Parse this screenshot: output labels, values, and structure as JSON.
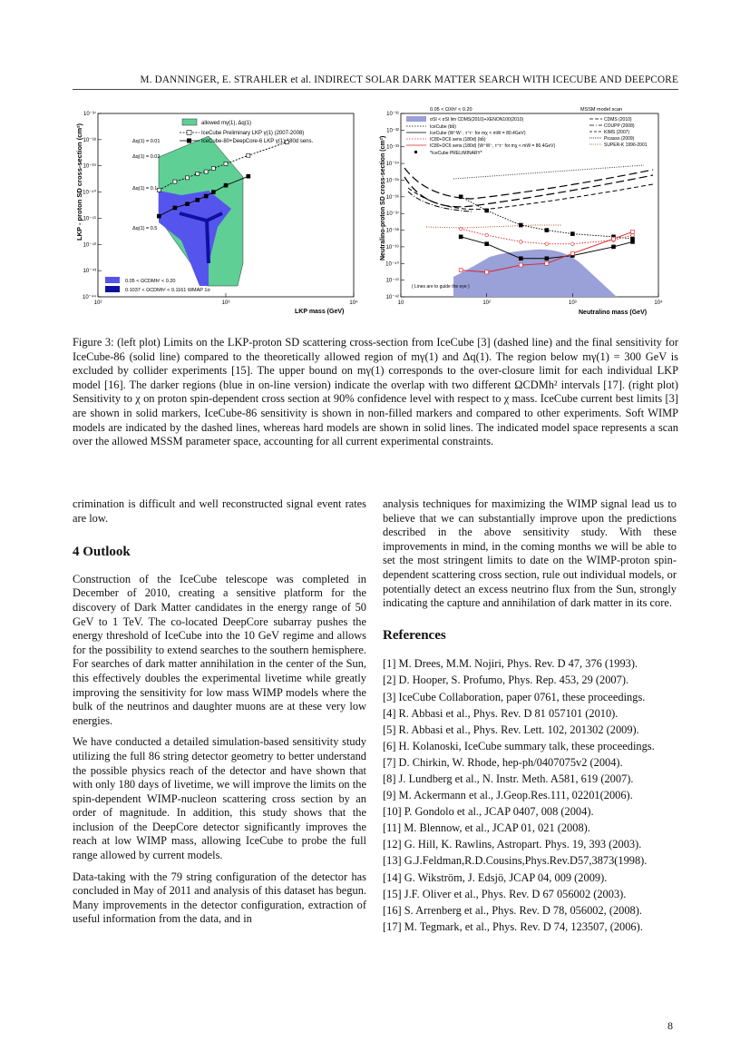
{
  "header": {
    "text": "M. DANNINGER, E. STRAHLER et al. INDIRECT SOLAR DARK MATTER SEARCH WITH ICECUBE AND DEEPCORE"
  },
  "figure": {
    "left": {
      "ylabel": "LKP - proton SD cross-section (cm²)",
      "xlabel": "LKP mass (GeV)",
      "y_ticks": [
        "10⁻³⁷",
        "10⁻³⁸",
        "10⁻³⁹",
        "10⁻⁴⁰",
        "10⁻⁴¹",
        "10⁻⁴²",
        "10⁻⁴³",
        "10⁻⁴⁴"
      ],
      "x_ticks": [
        "10²",
        "10³",
        "10⁴"
      ],
      "legend": [
        "allowed mγ(1), Δq(1)",
        "IceCube Preliminary LKP γ(1) (2007-2008)",
        "IceCube-80+DeepCore-6 LKP γ(1) 180d sens."
      ],
      "legend2": [
        "0.05 < ΩCDMh² < 0.20",
        "0.1037 < ΩCDMh² < 0.1161 WMAP 1σ"
      ],
      "annotations": [
        "Δq(1) = 0.01",
        "Δq(1) = 0.02",
        "Δq(1) = 0.1",
        "Δq(1) = 0.5"
      ],
      "chart_data": {
        "type": "line",
        "xlabel": "LKP mass (GeV)",
        "ylabel": "LKP - proton SD cross-section (cm²)",
        "xlim": [
          100,
          10000
        ],
        "ylim": [
          1e-44,
          1e-37
        ],
        "log_x": true,
        "log_y": true,
        "series": [
          {
            "name": "IceCube Preliminary LKP γ(1) (2007-2008)",
            "x": [
              300,
              400,
              500,
              600,
              700,
              800,
              1000,
              1500,
              3000
            ],
            "y": [
              1.2e-40,
              2.5e-40,
              3.5e-40,
              5e-40,
              6e-40,
              8e-40,
              1.2e-39,
              2.5e-39,
              8e-39
            ]
          },
          {
            "name": "IceCube-80+DeepCore-6 LKP γ(1) 180d sens.",
            "x": [
              300,
              400,
              500,
              600,
              700,
              800,
              1000,
              1500
            ],
            "y": [
              1.2e-41,
              2.5e-41,
              3.5e-41,
              5e-41,
              7e-41,
              1e-40,
              1.8e-40,
              4e-40
            ]
          }
        ]
      }
    },
    "right": {
      "top_label1": "0.05 < ΩXh² < 0.20",
      "top_label2": "MSSM model scan",
      "ylabel": "Neutralino-proton SD cross-section (cm²)",
      "xlabel": "Neutralino mass (GeV)",
      "y_ticks": [
        "10⁻³¹",
        "10⁻³²",
        "10⁻³³",
        "10⁻³⁴",
        "10⁻³⁵",
        "10⁻³⁶",
        "10⁻³⁷",
        "10⁻³⁸",
        "10⁻³⁹",
        "10⁻⁴⁰",
        "10⁻⁴¹",
        "10⁻⁴²"
      ],
      "x_ticks": [
        "10",
        "10²",
        "10³",
        "10⁴"
      ],
      "legend_left": [
        "σSI < σSI lim CDMS(2010)+XENON100(2010)",
        "IceCube (bb̄)",
        "IceCube (W⁺W⁻, τ⁺τ⁻ for mχ < mW = 80.4GeV)",
        "IC80+DC6 sens.(180d) (bb̄)",
        "IC80+DC6 sens.(180d) (W⁺W⁻, τ⁺τ⁻ for mχ < mW = 80.4GeV)",
        "*IceCube PRELIMINARY*"
      ],
      "legend_right": [
        "CDMS (2010)",
        "COUPP (2008)",
        "KIMS (2007)",
        "Picasso (2009)",
        "SUPER-K 1996-2001"
      ],
      "note": "( Lines are to guide the eye )",
      "chart_data": {
        "type": "line",
        "xlabel": "Neutralino mass (GeV)",
        "ylabel": "Neutralino-proton SD cross-section (cm²)",
        "xlim": [
          10,
          10000
        ],
        "ylim": [
          1e-42,
          1e-31
        ],
        "log_x": true,
        "log_y": true,
        "series": [
          {
            "name": "IceCube (bb̄)",
            "x": [
              50,
              100,
              250,
              500,
              1000,
              3000,
              5000
            ],
            "y": [
              1e-36,
              1.5e-37,
              2e-38,
              1e-38,
              6e-39,
              4e-39,
              3e-39
            ]
          },
          {
            "name": "IceCube (W⁺W⁻, τ⁺τ⁻ for mχ < mW = 80.4GeV)",
            "x": [
              50,
              100,
              250,
              500,
              1000,
              3000,
              5000
            ],
            "y": [
              4e-39,
              1.5e-39,
              2e-40,
              2e-40,
              3e-40,
              1e-39,
              2e-39
            ]
          },
          {
            "name": "IC80+DC6 sens.(180d) (bb̄)",
            "x": [
              50,
              100,
              250,
              500,
              1000,
              3000,
              5000
            ],
            "y": [
              1.2e-38,
              5e-39,
              2e-39,
              1.5e-39,
              1.5e-39,
              2.5e-39,
              5e-39
            ]
          },
          {
            "name": "IC80+DC6 sens.(180d) (W⁺W⁻, τ⁺τ⁻ for mχ < mW = 80.4GeV)",
            "x": [
              50,
              100,
              250,
              500,
              1000,
              3000,
              5000
            ],
            "y": [
              4e-41,
              3e-41,
              8e-41,
              1e-40,
              4e-40,
              3e-39,
              8e-39
            ]
          }
        ]
      }
    }
  },
  "caption": "Figure 3: (left plot) Limits on the LKP-proton SD scattering cross-section from IceCube [3] (dashed line) and the final sensitivity for IceCube-86 (solid line) compared to the theoretically allowed region of mγ(1) and Δq(1). The region below mγ(1) = 300 GeV is excluded by collider experiments [15]. The upper bound on mγ(1) corresponds to the over-closure limit for each individual LKP model [16]. The darker regions (blue in on-line version) indicate the overlap with two different ΩCDMh² intervals [17]. (right plot) Sensitivity to χ on proton spin-dependent cross section at 90% confidence level with respect to χ mass. IceCube current best limits [3] are shown in solid markers, IceCube-86 sensitivity is shown in non-filled markers and compared to other experiments. Soft WIMP models are indicated by the dashed lines, whereas hard models are shown in solid lines. The indicated model space represents a scan over the allowed MSSM parameter space, accounting for all current experimental constraints.",
  "left_col": {
    "p0": "crimination is difficult and well reconstructed signal event rates are low.",
    "heading": "4   Outlook",
    "p1": "Construction of the IceCube telescope was completed in December of 2010, creating a sensitive platform for the discovery of Dark Matter candidates in the energy range of 50 GeV to 1 TeV. The co-located DeepCore subarray pushes the energy threshold of IceCube into the 10 GeV regime and allows for the possibility to extend searches to the southern hemisphere. For searches of dark matter annihilation in the center of the Sun, this effectively doubles the experimental livetime while greatly improving the sensitivity for low mass WIMP models where the bulk of the neutrinos and daughter muons are at these very low energies.",
    "p2": "We have conducted a detailed simulation-based sensitivity study utilizing the full 86 string detector geometry to better understand the possible physics reach of the detector and have shown that with only 180 days of livetime, we will improve the limits on the spin-dependent WIMP-nucleon scattering cross section by an order of magnitude. In addition, this study shows that the inclusion of the DeepCore detector significantly improves the reach at low WIMP mass, allowing IceCube to probe the full range allowed by current models.",
    "p3": "Data-taking with the 79 string configuration of the detector has concluded in May of 2011 and analysis of this dataset has begun. Many improvements in the detector configuration, extraction of useful information from the data, and in"
  },
  "right_col": {
    "p0": "analysis techniques for maximizing the WIMP signal lead us to believe that we can substantially improve upon the predictions described in the above sensitivity study. With these improvements in mind, in the coming months we will be able to set the most stringent limits to date on the WIMP-proton spin-dependent scattering cross section, rule out individual models, or potentially detect an excess neutrino flux from the Sun, strongly indicating the capture and annihilation of dark matter in its core.",
    "heading": "References",
    "refs": [
      "[1]  M. Drees, M.M. Nojiri, Phys. Rev. D 47, 376 (1993).",
      "[2]  D. Hooper, S. Profumo, Phys. Rep. 453, 29 (2007).",
      "[3]  IceCube Collaboration, paper 0761, these proceedings.",
      "[4]  R. Abbasi et al., Phys. Rev. D 81 057101 (2010).",
      "[5]  R. Abbasi et al., Phys. Rev. Lett. 102, 201302 (2009).",
      "[6]  H. Kolanoski, IceCube summary talk, these proceedings.",
      "[7]  D. Chirkin, W. Rhode, hep-ph/0407075v2 (2004).",
      "[8]  J. Lundberg et al., N. Instr. Meth. A581, 619 (2007).",
      "[9]  M. Ackermann et al., J.Geop.Res.111, 02201(2006).",
      "[10]  P. Gondolo et al., JCAP 0407, 008 (2004).",
      "[11]  M. Blennow, et al., JCAP 01, 021 (2008).",
      "[12]  G. Hill, K. Rawlins, Astropart. Phys. 19, 393 (2003).",
      "[13]  G.J.Feldman,R.D.Cousins,Phys.Rev.D57,3873(1998).",
      "[14]  G. Wikström, J. Edsjö, JCAP 04, 009 (2009).",
      "[15]  J.F. Oliver et al., Phys. Rev. D 67 056002 (2003).",
      "[16]  S. Arrenberg et al., Phys. Rev. D 78, 056002, (2008).",
      "[17]  M. Tegmark, et al., Phys. Rev. D 74, 123507, (2006)."
    ]
  },
  "page_number": "8",
  "colors": {
    "green": "#5fcf95",
    "blue": "#5555ee",
    "darkblue": "#1010a0",
    "red": "#dd2222",
    "gray_fill": "#9aa0d8"
  }
}
